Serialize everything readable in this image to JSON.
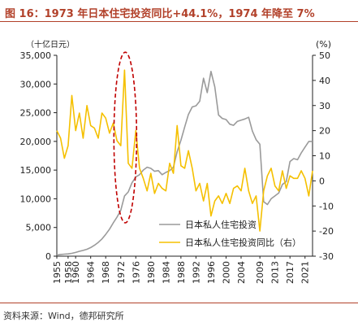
{
  "title": "图 16：1973 年日本住宅投资同比+44.1%，1974 年降至 7%",
  "source": "资料来源：Wind，德邦研究所",
  "colors": {
    "title": "#b2412a",
    "investment": "#9a9a9a",
    "yoy": "#f5c000",
    "highlight": "#c00000"
  },
  "chart_data": {
    "type": "line",
    "title": "",
    "left_unit": "（十亿日元）",
    "right_unit": "(%)",
    "x_ticks": [
      1955,
      1958,
      1960,
      1964,
      1968,
      1972,
      1976,
      1980,
      1984,
      1988,
      1992,
      1996,
      2000,
      2004,
      2009,
      2013,
      2017,
      2021
    ],
    "ylim_left": [
      0,
      35000
    ],
    "y_ticks_left": [
      "0",
      "5,000",
      "10,000",
      "15,000",
      "20,000",
      "25,000",
      "30,000",
      "35,000"
    ],
    "ylim_right": [
      -30,
      50
    ],
    "y_ticks_right": [
      "-30",
      "-20",
      "-10",
      "0",
      "10",
      "20",
      "30",
      "40",
      "50"
    ],
    "legend_position": "lower-right",
    "highlight_annotation": "dashed red ellipse around 1973-1974",
    "series": [
      {
        "name": "日本私人住宅投资",
        "axis": "left",
        "x": [
          1955,
          1956,
          1957,
          1958,
          1959,
          1960,
          1961,
          1962,
          1963,
          1964,
          1965,
          1966,
          1967,
          1968,
          1969,
          1970,
          1971,
          1972,
          1973,
          1974,
          1975,
          1976,
          1977,
          1978,
          1979,
          1980,
          1981,
          1982,
          1983,
          1984,
          1985,
          1986,
          1987,
          1988,
          1989,
          1990,
          1991,
          1992,
          1993,
          1994,
          1995,
          1996,
          1997,
          1998,
          1999,
          2000,
          2001,
          2002,
          2003,
          2004,
          2005,
          2006,
          2007,
          2008,
          2009,
          2010,
          2011,
          2012,
          2013,
          2014,
          2015,
          2016,
          2017,
          2018,
          2019,
          2020,
          2021,
          2022,
          2023
        ],
        "values": [
          200,
          300,
          350,
          400,
          500,
          650,
          850,
          1000,
          1200,
          1500,
          1900,
          2400,
          3000,
          3800,
          4700,
          5800,
          6800,
          8000,
          10500,
          11200,
          12800,
          13800,
          14200,
          15000,
          15500,
          15300,
          14800,
          14900,
          14200,
          14600,
          14900,
          15500,
          18200,
          20200,
          22500,
          24700,
          26000,
          26200,
          27000,
          31000,
          28500,
          32200,
          29500,
          24600,
          24000,
          23800,
          23000,
          22800,
          23500,
          23700,
          23900,
          24200,
          21800,
          20300,
          19500,
          9500,
          9000,
          10000,
          10500,
          11000,
          12500,
          13000,
          16500,
          17000,
          16800,
          18000,
          19000,
          20000,
          20000
        ]
      },
      {
        "name": "日本私人住宅投资同比（右）",
        "axis": "right",
        "x": [
          1955,
          1956,
          1957,
          1958,
          1959,
          1960,
          1961,
          1962,
          1963,
          1964,
          1965,
          1966,
          1967,
          1968,
          1969,
          1970,
          1971,
          1972,
          1973,
          1974,
          1975,
          1976,
          1977,
          1978,
          1979,
          1980,
          1981,
          1982,
          1983,
          1984,
          1985,
          1986,
          1987,
          1988,
          1989,
          1990,
          1991,
          1992,
          1993,
          1994,
          1995,
          1996,
          1997,
          1998,
          1999,
          2000,
          2001,
          2002,
          2003,
          2004,
          2005,
          2006,
          2007,
          2008,
          2009,
          2010,
          2011,
          2012,
          2013,
          2014,
          2015,
          2016,
          2017,
          2018,
          2019,
          2020,
          2021,
          2022,
          2023
        ],
        "values": [
          20,
          17,
          9,
          14,
          34,
          20,
          27,
          17,
          30,
          22,
          21,
          17,
          27,
          25,
          19,
          23,
          16,
          14,
          44.1,
          7,
          5,
          20,
          5,
          1,
          -4,
          3,
          -5,
          -1,
          -3,
          -4,
          7,
          3,
          22,
          6,
          5,
          12,
          5,
          -4,
          -1,
          -8,
          -1,
          -14,
          -8,
          -6,
          -9,
          -5,
          -9,
          -3,
          -2,
          -4,
          5,
          -4,
          -9,
          -6,
          -20,
          -4,
          2,
          5,
          -2,
          -4,
          4,
          -3,
          2,
          1,
          1,
          4,
          1,
          -6,
          4
        ]
      }
    ]
  }
}
